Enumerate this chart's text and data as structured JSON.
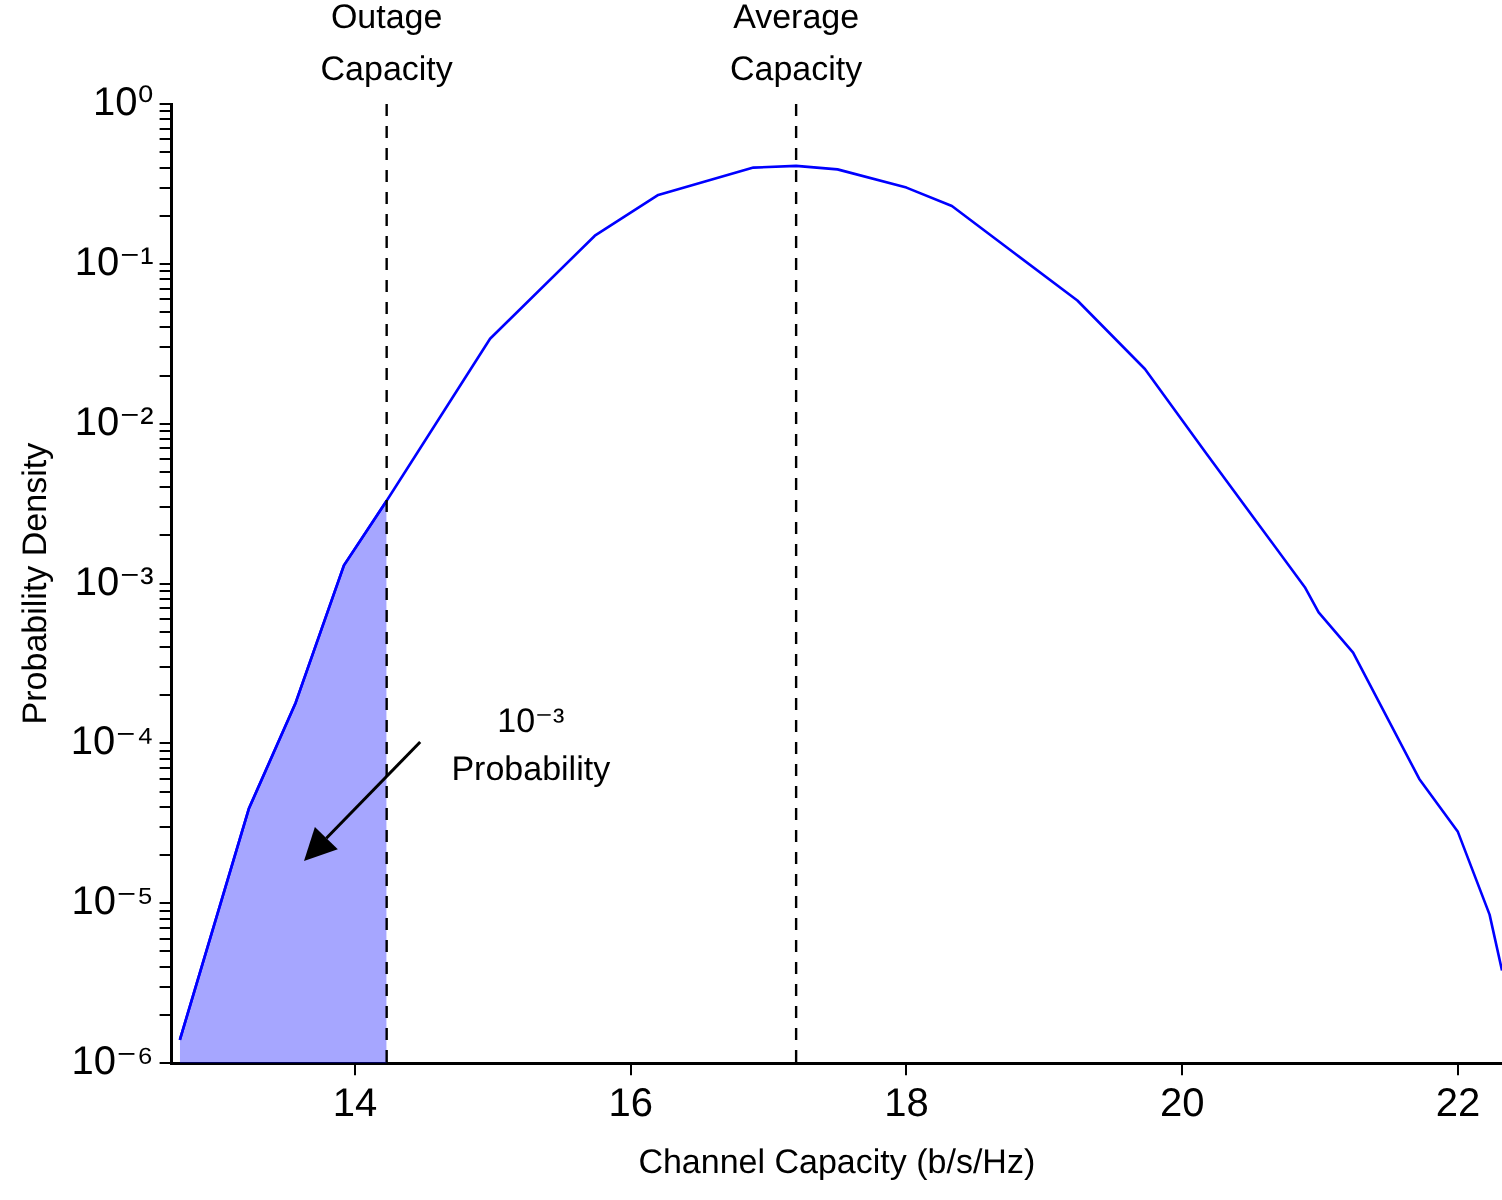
{
  "chart_data": {
    "type": "line",
    "xlabel": "Channel Capacity (b/s/Hz)",
    "ylabel": "Probability Density",
    "series": [
      {
        "color": "#0000ff",
        "x": [
          12.73,
          13.23,
          13.57,
          13.92,
          14.23,
          14.98,
          15.74,
          16.2,
          16.89,
          17.2,
          17.5,
          18.0,
          18.33,
          19.24,
          19.73,
          20.17,
          20.89,
          20.99,
          21.24,
          21.72,
          22.0,
          22.23,
          22.32
        ],
        "values": [
          1.4e-06,
          3.9e-05,
          0.00018,
          0.0013,
          0.0033,
          0.034,
          0.15,
          0.27,
          0.4,
          0.41,
          0.39,
          0.3,
          0.23,
          0.059,
          0.022,
          0.0066,
          0.00095,
          0.00066,
          0.00037,
          6e-05,
          2.8e-05,
          8.5e-06,
          3.8e-06
        ]
      },
      {
        "type": "area",
        "color": "#0000ff",
        "x": [
          12.73,
          13.23,
          13.57,
          13.92,
          14.23
        ],
        "values": [
          1.4e-06,
          3.9e-05,
          0.00018,
          0.0013,
          0.0033
        ]
      }
    ],
    "xlim": [
      12.67,
      22.32
    ],
    "xticks": [
      14,
      16,
      18,
      20,
      22
    ],
    "ylim": [
      1e-06,
      1
    ],
    "log": "y",
    "yticks": [
      {
        "value": 1e-06,
        "label": "10⁻⁶"
      },
      {
        "value": 2e-06,
        "label": null
      },
      {
        "value": 3e-06,
        "label": null
      },
      {
        "value": 4e-06,
        "label": null
      },
      {
        "value": 5e-06,
        "label": null
      },
      {
        "value": 6e-06,
        "label": null
      },
      {
        "value": 7e-06,
        "label": null
      },
      {
        "value": 8e-06,
        "label": null
      },
      {
        "value": 9e-06,
        "label": null
      },
      {
        "value": 1e-05,
        "label": "10⁻⁵"
      },
      {
        "value": 2e-05,
        "label": null
      },
      {
        "value": 3e-05,
        "label": null
      },
      {
        "value": 4e-05,
        "label": null
      },
      {
        "value": 5e-05,
        "label": null
      },
      {
        "value": 6e-05,
        "label": null
      },
      {
        "value": 7e-05,
        "label": null
      },
      {
        "value": 8e-05,
        "label": null
      },
      {
        "value": 9e-05,
        "label": null
      },
      {
        "value": 0.0001,
        "label": "10⁻⁴"
      },
      {
        "value": 0.0002,
        "label": null
      },
      {
        "value": 0.0003,
        "label": null
      },
      {
        "value": 0.0004,
        "label": null
      },
      {
        "value": 0.0005,
        "label": null
      },
      {
        "value": 0.0006,
        "label": null
      },
      {
        "value": 0.0007,
        "label": null
      },
      {
        "value": 0.0008,
        "label": null
      },
      {
        "value": 0.0009,
        "label": null
      },
      {
        "value": 0.001,
        "label": "10⁻³"
      },
      {
        "value": 0.002,
        "label": null
      },
      {
        "value": 0.003,
        "label": null
      },
      {
        "value": 0.004,
        "label": null
      },
      {
        "value": 0.005,
        "label": null
      },
      {
        "value": 0.006,
        "label": null
      },
      {
        "value": 0.007,
        "label": null
      },
      {
        "value": 0.008,
        "label": null
      },
      {
        "value": 0.009,
        "label": null
      },
      {
        "value": 0.01,
        "label": "10⁻²"
      },
      {
        "value": 0.02,
        "label": null
      },
      {
        "value": 0.03,
        "label": null
      },
      {
        "value": 0.04,
        "label": null
      },
      {
        "value": 0.05,
        "label": null
      },
      {
        "value": 0.06,
        "label": null
      },
      {
        "value": 0.07,
        "label": null
      },
      {
        "value": 0.08,
        "label": null
      },
      {
        "value": 0.09,
        "label": null
      },
      {
        "value": 0.1,
        "label": "10⁻¹"
      },
      {
        "value": 0.2,
        "label": null
      },
      {
        "value": 0.3,
        "label": null
      },
      {
        "value": 0.4,
        "label": null
      },
      {
        "value": 0.5,
        "label": null
      },
      {
        "value": 0.6,
        "label": null
      },
      {
        "value": 0.7,
        "label": null
      },
      {
        "value": 0.8,
        "label": null
      },
      {
        "value": 0.9,
        "label": null
      },
      {
        "value": 1,
        "label": "10⁰"
      }
    ],
    "ref_lines": [
      {
        "axis": "x",
        "value": 14.23,
        "label": "Outage Capacity",
        "line_style": "dashed",
        "color": "#000000"
      },
      {
        "axis": "x",
        "value": 17.2,
        "label": "Average Capacity",
        "line_style": "dashed",
        "color": "#000000"
      }
    ],
    "annotations": [
      "10⁻³ Probability"
    ]
  }
}
